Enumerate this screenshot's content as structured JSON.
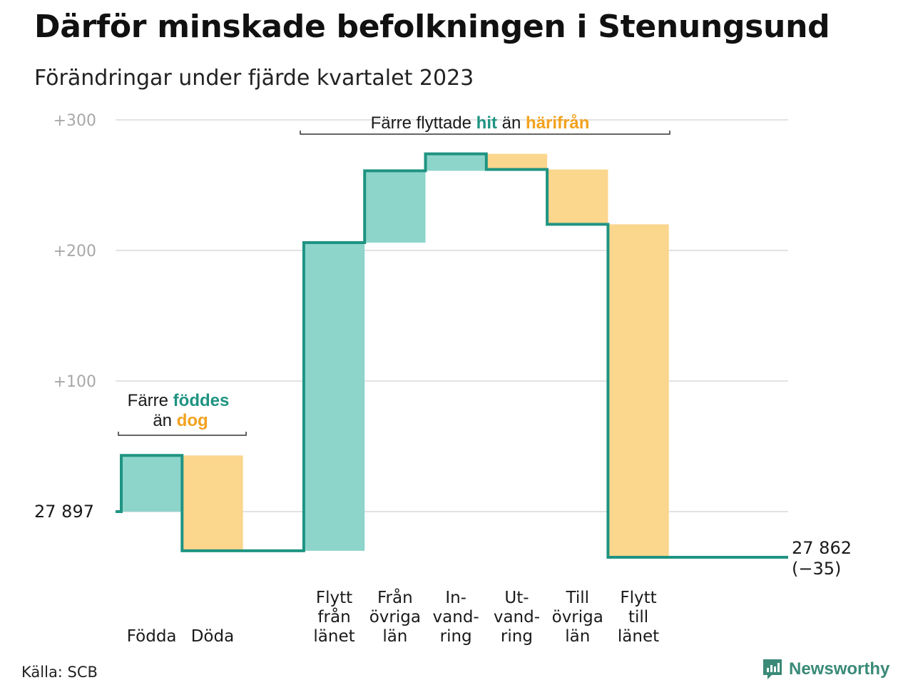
{
  "header": {
    "title": "Därför minskade befolkningen i Stenungsund",
    "subtitle": "Förändringar under fjärde kvartalet 2023"
  },
  "footer": {
    "source": "Källa: SCB",
    "brand": "Newsworthy"
  },
  "colors": {
    "inflow": "#8dd5cb",
    "outflow": "#fbd68d",
    "line": "#1f9482",
    "accent_teal": "#1f9482",
    "accent_orange": "#f2a21e",
    "grid": "#e3e3e3",
    "tick": "#a8a8a8"
  },
  "annotations": {
    "births": {
      "pre": "Färre",
      "hl1": "föddes",
      "mid": "än",
      "hl2": "dog"
    },
    "moves": {
      "pre": "Färre flyttade",
      "hl1": "hit",
      "mid": "än",
      "hl2": "härifrån"
    }
  },
  "chart_data": {
    "type": "waterfall",
    "baseline": 27897,
    "start_label": "27  897",
    "end_labels": [
      "27 862",
      "(−35)"
    ],
    "end_value": 27862,
    "ylim": [
      -35,
      300
    ],
    "yticks": [
      0,
      100,
      200,
      300
    ],
    "ytick_labels": [
      "",
      "+100",
      "+200",
      "+300"
    ],
    "gridlines": true,
    "steps": [
      {
        "name": "Födda",
        "label_lines": [
          "Födda"
        ],
        "value": 43,
        "direction": "in"
      },
      {
        "name": "Döda",
        "label_lines": [
          "Döda"
        ],
        "value": -73,
        "direction": "out"
      },
      {
        "name": "Flytt från länet",
        "label_lines": [
          "Flytt",
          "från",
          "länet"
        ],
        "value": 236,
        "direction": "in"
      },
      {
        "name": "Från övriga län",
        "label_lines": [
          "Från",
          "övriga",
          "län"
        ],
        "value": 55,
        "direction": "in"
      },
      {
        "name": "Invandring",
        "label_lines": [
          "In-",
          "vand-",
          "ring"
        ],
        "value": 13,
        "direction": "in"
      },
      {
        "name": "Utvandring",
        "label_lines": [
          "Ut-",
          "vand-",
          "ring"
        ],
        "value": -12,
        "direction": "out"
      },
      {
        "name": "Till övriga län",
        "label_lines": [
          "Till",
          "övriga",
          "län"
        ],
        "value": -42,
        "direction": "out"
      },
      {
        "name": "Flytt till länet",
        "label_lines": [
          "Flytt",
          "till",
          "länet"
        ],
        "value": -255,
        "direction": "out"
      }
    ],
    "groups": [
      {
        "annotation": "births",
        "from_step": 0,
        "to_step": 1
      },
      {
        "annotation": "moves",
        "from_step": 2,
        "to_step": 7
      }
    ]
  }
}
